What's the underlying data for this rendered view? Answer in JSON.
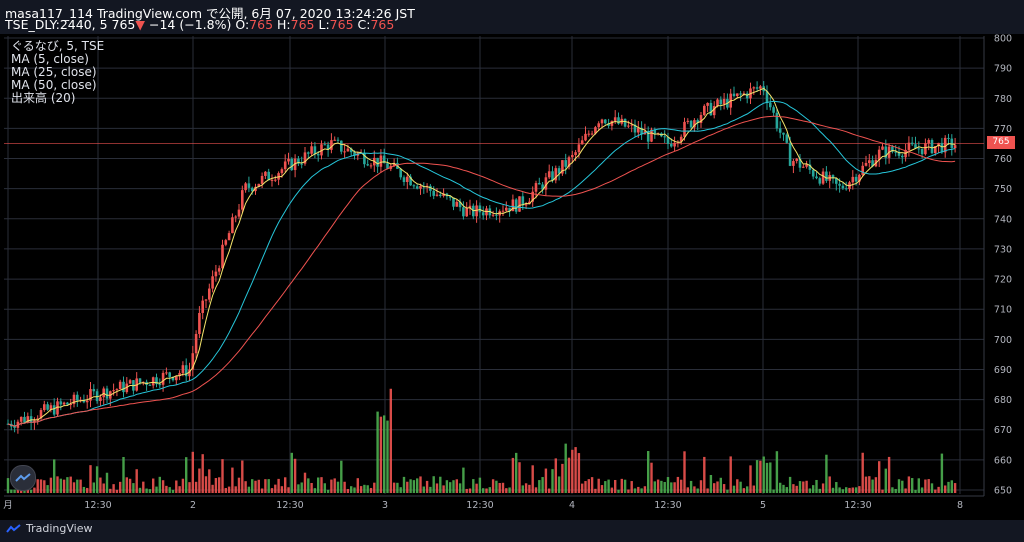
{
  "header": {
    "publish_line": "masa117_114 TradingView.com で公開, 6月 07, 2020 13:24:26 JST",
    "ticker_line_prefix": "TSE_DLY:2440, 5 765",
    "change_arrow": "▼",
    "change_text": "−14 (−1.8%)",
    "ohlc_o_label": "O:",
    "ohlc_o": "765",
    "ohlc_h_label": "H:",
    "ohlc_h": "765",
    "ohlc_l_label": "L:",
    "ohlc_l": "765",
    "ohlc_c_label": "C:",
    "ohlc_c": "765"
  },
  "legend": {
    "symbol": "ぐるなび, 5, TSE",
    "ma5": "MA (5, close)",
    "ma25": "MA (25, close)",
    "ma50": "MA (50, close)",
    "volume": "出来高 (20)"
  },
  "price_badge": "765",
  "footer": {
    "brand": "TradingView",
    "brand_icon": "tradingview-logo-icon"
  },
  "colors": {
    "up": "#ef5350",
    "down": "#26a69a",
    "vol_up": "#ef5350",
    "vol_down": "#4caf50",
    "ma5": "#f5e56b",
    "ma25": "#26c6da",
    "ma50": "#ef5350",
    "grid": "#2a2e39",
    "bg": "#000000"
  },
  "chart_data": {
    "type": "candlestick",
    "symbol": "TSE_DLY:2440",
    "interval": "5",
    "y_axis_labels": [
      "800",
      "790",
      "780",
      "770",
      "760",
      "750",
      "740",
      "730",
      "720",
      "710",
      "700",
      "690",
      "680",
      "670",
      "660",
      "650"
    ],
    "ylim": [
      648,
      802
    ],
    "x_axis_labels": [
      "月",
      "12:30",
      "2",
      "12:30",
      "3",
      "12:30",
      "4",
      "12:30",
      "5",
      "12:30",
      "8"
    ],
    "grid": true,
    "last_price": 765,
    "price_anchors": [
      {
        "x_label": "月",
        "close": 672
      },
      {
        "x_label": "12:30",
        "close": 682
      },
      {
        "x_label": "2",
        "close": 690
      },
      {
        "x_label": "2",
        "close": 706
      },
      {
        "x_label": "12:30",
        "close": 750
      },
      {
        "x_label": "12:30",
        "close": 765
      },
      {
        "x_label": "3",
        "close": 758
      },
      {
        "x_label": "12:30",
        "close": 742
      },
      {
        "x_label": "12:30",
        "close": 745
      },
      {
        "x_label": "4",
        "close": 760
      },
      {
        "x_label": "4",
        "close": 774
      },
      {
        "x_label": "12:30",
        "close": 765
      },
      {
        "x_label": "12:30",
        "close": 775
      },
      {
        "x_label": "5",
        "close": 784
      },
      {
        "x_label": "5",
        "close": 760
      },
      {
        "x_label": "12:30",
        "close": 750
      },
      {
        "x_label": "12:30",
        "close": 762
      },
      {
        "x_label": "8",
        "close": 765
      }
    ],
    "series": [
      {
        "name": "MA (5, close)",
        "color": "#f5e56b"
      },
      {
        "name": "MA (25, close)",
        "color": "#26c6da"
      },
      {
        "name": "MA (50, close)",
        "color": "#ef5350"
      },
      {
        "name": "出来高 (20)"
      }
    ]
  }
}
